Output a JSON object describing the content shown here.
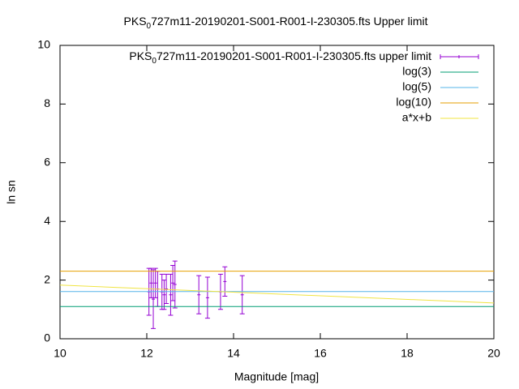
{
  "chart_data": {
    "type": "errorbar",
    "title": [
      "PKS",
      "0",
      "727m11-20190201-S001-R001-I-230305.fts Upper limit"
    ],
    "xlabel": "Magnitude [mag]",
    "ylabel": "ln sn",
    "xlim": [
      10,
      20
    ],
    "xticks": [
      10,
      12,
      14,
      16,
      18,
      20
    ],
    "ylim": [
      0,
      10
    ],
    "yticks": [
      0,
      2,
      4,
      6,
      8,
      10
    ],
    "grid": false,
    "legend": "top-right",
    "series": [
      {
        "name": [
          "PKS",
          "0",
          "727m11-20190201-S001-R001-I-230305.fts upper limit"
        ],
        "kind": "errorbar",
        "color": "#9400d3",
        "x": [
          12.05,
          12.1,
          12.15,
          12.2,
          12.25,
          12.35,
          12.4,
          12.45,
          12.55,
          12.6,
          12.65,
          13.2,
          13.4,
          13.7,
          13.8,
          14.2
        ],
        "values": [
          1.6,
          1.9,
          1.35,
          1.9,
          1.7,
          1.6,
          1.5,
          1.7,
          1.5,
          1.9,
          1.85,
          1.5,
          1.4,
          1.6,
          1.95,
          1.5
        ],
        "errors": [
          0.8,
          0.5,
          1.0,
          0.5,
          0.6,
          0.6,
          0.5,
          0.5,
          0.7,
          0.6,
          0.8,
          0.65,
          0.7,
          0.6,
          0.5,
          0.65
        ]
      },
      {
        "name": "log(3)",
        "kind": "line",
        "color": "#009e73",
        "x": [
          10,
          20
        ],
        "values": [
          1.0986,
          1.0986
        ]
      },
      {
        "name": "log(5)",
        "kind": "line",
        "color": "#56b4e9",
        "x": [
          10,
          20
        ],
        "values": [
          1.6094,
          1.6094
        ]
      },
      {
        "name": "log(10)",
        "kind": "line",
        "color": "#e69f00",
        "x": [
          10,
          20
        ],
        "values": [
          2.3026,
          2.3026
        ]
      },
      {
        "name": "a*x+b",
        "kind": "line",
        "color": "#f0e442",
        "x": [
          10,
          20
        ],
        "values": [
          1.83,
          1.22
        ]
      }
    ]
  }
}
